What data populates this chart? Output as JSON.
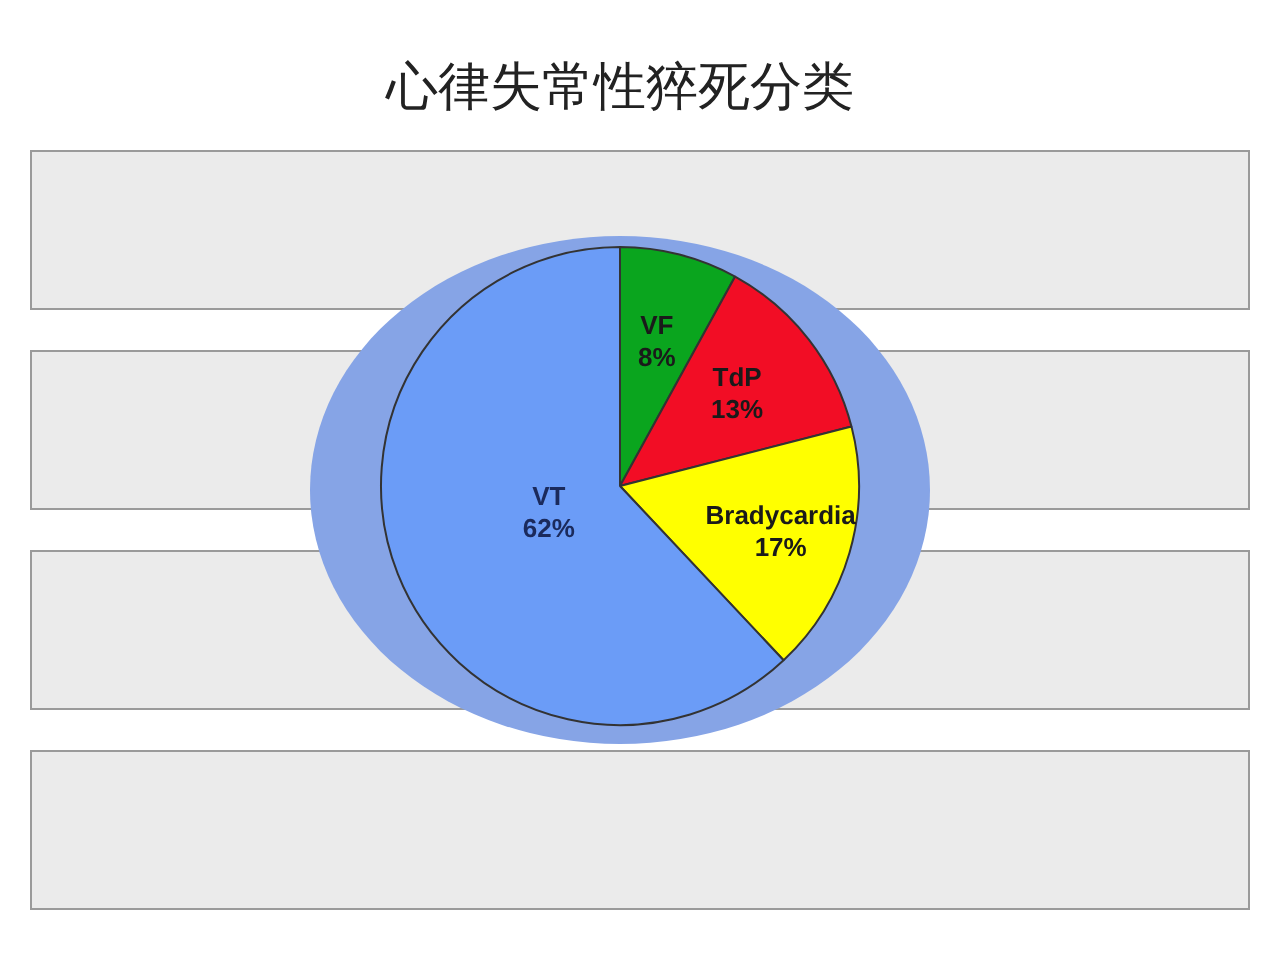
{
  "chart_data": {
    "type": "pie",
    "title": "心律失常性猝死分类",
    "categories": [
      "VF",
      "TdP",
      "Bradycardia",
      "VT"
    ],
    "values": [
      8,
      13,
      17,
      62
    ],
    "value_labels": [
      "8%",
      "13%",
      "17%",
      "62%"
    ],
    "colors": [
      "#0aa51e",
      "#f20d25",
      "#ffff00",
      "#6b9cf7"
    ],
    "legend": false
  }
}
